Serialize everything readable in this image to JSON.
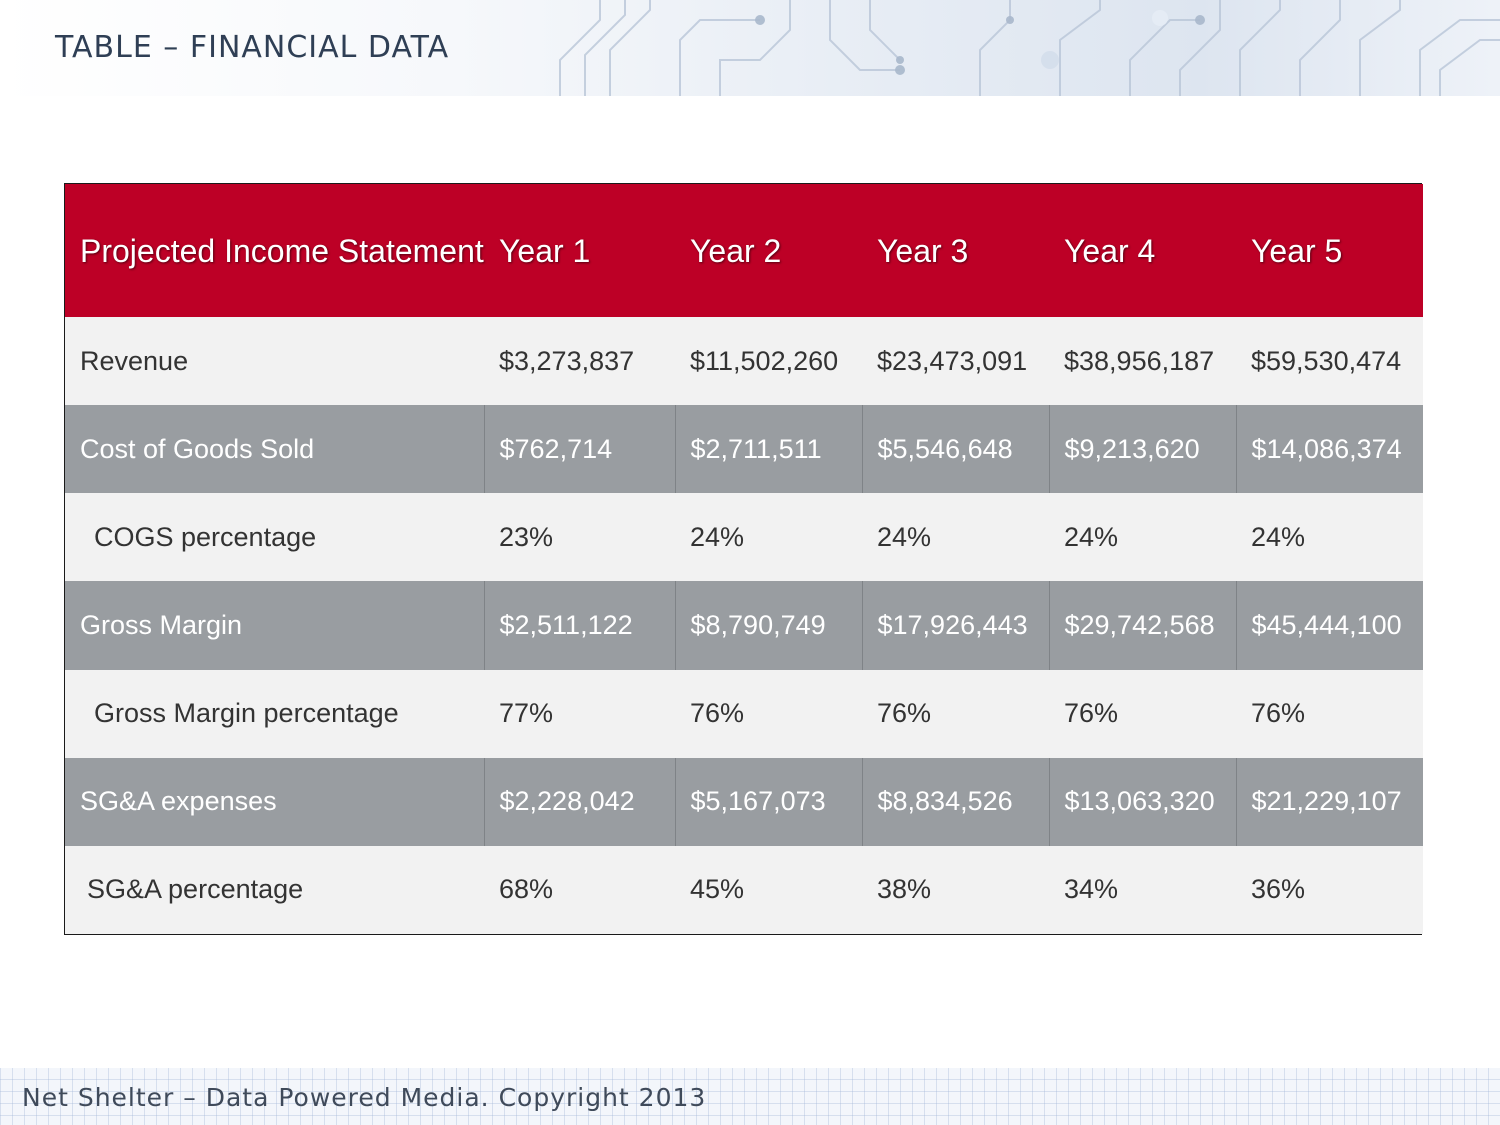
{
  "slide": {
    "title": "TABLE – FINANCIAL DATA",
    "footer": "Net Shelter – Data Powered Media. Copyright 2013"
  },
  "colors": {
    "header_red": "#bd0026",
    "row_light": "#f2f2f2",
    "row_dark": "#999da1"
  },
  "table": {
    "header": [
      "Projected Income Statement",
      "Year 1",
      "Year 2",
      "Year 3",
      "Year 4",
      "Year 5"
    ],
    "rows": [
      {
        "label": "Revenue",
        "values": [
          "$3,273,837",
          "$11,502,260",
          "$23,473,091",
          "$38,956,187",
          "$59,530,474"
        ]
      },
      {
        "label": "Cost of Goods Sold",
        "values": [
          "$762,714",
          "$2,711,511",
          "$5,546,648",
          "$9,213,620",
          "$14,086,374"
        ]
      },
      {
        "label": "COGS percentage",
        "values": [
          "23%",
          "24%",
          "24%",
          "24%",
          "24%"
        ]
      },
      {
        "label": "Gross Margin",
        "values": [
          "$2,511,122",
          "$8,790,749",
          "$17,926,443",
          "$29,742,568",
          "$45,444,100"
        ]
      },
      {
        "label": "Gross Margin percentage",
        "values": [
          "77%",
          "76%",
          "76%",
          "76%",
          "76%"
        ]
      },
      {
        "label": "SG&A expenses",
        "values": [
          "$2,228,042",
          "$5,167,073",
          "$8,834,526",
          "$13,063,320",
          "$21,229,107"
        ]
      },
      {
        "label": "SG&A percentage",
        "values": [
          "68%",
          "45%",
          "38%",
          "34%",
          "36%"
        ]
      }
    ]
  }
}
